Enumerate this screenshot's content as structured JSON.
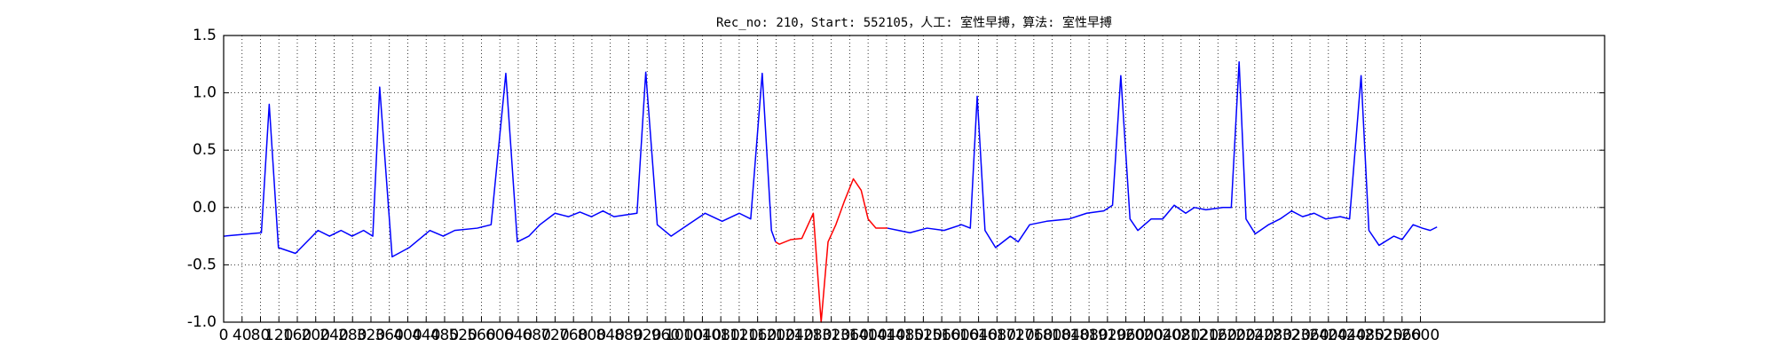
{
  "chart_data": {
    "type": "line",
    "title": "Rec_no: 210，Start: 552105，人工: 室性早搏，算法: 室性早搏",
    "xlim": [
      0,
      3000
    ],
    "xticks": [
      0,
      40,
      80,
      120,
      160,
      200,
      240,
      280,
      320,
      360,
      400,
      440,
      480,
      520,
      560,
      600,
      640,
      680,
      720,
      760,
      800,
      840,
      880,
      920,
      960,
      1000,
      1040,
      1080,
      1120,
      1160,
      1200,
      1240,
      1280,
      1320,
      1360,
      1400,
      1440,
      1480,
      1520,
      1560,
      1600,
      1640,
      1680,
      1720,
      1760,
      1800,
      1840,
      1880,
      1920,
      1960,
      2000,
      2040,
      2080,
      2120,
      2160,
      2200,
      2240,
      2280,
      2320,
      2360,
      2400,
      2440,
      2480,
      2520,
      2560,
      2600
    ],
    "ylim": [
      -1.0,
      1.5
    ],
    "yticks": [
      {
        "value": -1,
        "label": "-1.0"
      },
      -0.5,
      {
        "value": 0,
        "label": "0.0"
      },
      0.5,
      {
        "value": 1,
        "label": "1.0"
      },
      1.5
    ],
    "grid": true,
    "series": [
      {
        "color": "#0000ff",
        "x": [
          0,
          82,
          99,
          119,
          156,
          205,
          230,
          255,
          279,
          304,
          324,
          339,
          366,
          403,
          448,
          477,
          502,
          551,
          581,
          613,
          638,
          663,
          687,
          720,
          749,
          774,
          799,
          824,
          848,
          898,
          917,
          942,
          972,
          1009,
          1046,
          1083,
          1120,
          1145,
          1170,
          1190,
          1199,
          1300,
          1442,
          1466,
          1491,
          1528,
          1565,
          1603,
          1622,
          1637,
          1654,
          1677,
          1709,
          1726,
          1751,
          1788,
          1837,
          1875,
          1912,
          1931,
          1949,
          1969,
          1986,
          2015,
          2040,
          2065,
          2090,
          2109,
          2134,
          2171,
          2189,
          2206,
          2221,
          2241,
          2270,
          2295,
          2320,
          2344,
          2369,
          2394,
          2426,
          2446,
          2471,
          2488,
          2510,
          2542,
          2560,
          2584,
          2604,
          2621,
          2636
        ],
        "values": [
          -0.25,
          -0.22,
          0.9,
          -0.35,
          -0.4,
          -0.2,
          -0.25,
          -0.2,
          -0.25,
          -0.2,
          -0.25,
          1.05,
          -0.43,
          -0.35,
          -0.2,
          -0.25,
          -0.2,
          -0.18,
          -0.15,
          1.17,
          -0.3,
          -0.25,
          -0.15,
          -0.05,
          -0.08,
          -0.04,
          -0.08,
          -0.03,
          -0.08,
          -0.05,
          1.18,
          -0.15,
          -0.25,
          -0.15,
          -0.05,
          -0.12,
          -0.05,
          -0.1,
          1.17,
          -0.2,
          -0.3,
          null,
          -0.18,
          -0.2,
          -0.22,
          -0.18,
          -0.2,
          -0.15,
          -0.18,
          0.97,
          -0.2,
          -0.35,
          -0.25,
          -0.3,
          -0.15,
          -0.12,
          -0.1,
          -0.05,
          -0.03,
          0.02,
          1.15,
          -0.1,
          -0.2,
          -0.1,
          -0.1,
          0.02,
          -0.05,
          0,
          -0.02,
          0,
          0,
          1.27,
          -0.1,
          -0.23,
          -0.15,
          -0.1,
          -0.03,
          -0.08,
          -0.05,
          -0.1,
          -0.08,
          -0.1,
          1.15,
          -0.2,
          -0.33,
          -0.25,
          -0.28,
          -0.15,
          -0.18,
          -0.2,
          -0.17
        ]
      },
      {
        "color": "#ff0000",
        "x": [
          1199,
          1207,
          1232,
          1256,
          1281,
          1298,
          1313,
          1330,
          1348,
          1368,
          1385,
          1400,
          1417,
          1442
        ],
        "values": [
          -0.3,
          -0.32,
          -0.28,
          -0.27,
          -0.05,
          -1.0,
          -0.3,
          -0.15,
          0.05,
          0.25,
          0.15,
          -0.1,
          -0.18,
          -0.18
        ]
      }
    ]
  }
}
